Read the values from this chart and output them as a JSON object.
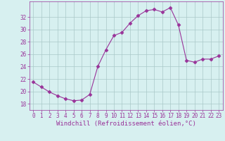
{
  "x": [
    0,
    1,
    2,
    3,
    4,
    5,
    6,
    7,
    8,
    9,
    10,
    11,
    12,
    13,
    14,
    15,
    16,
    17,
    18,
    19,
    20,
    21,
    22,
    23
  ],
  "y": [
    21.5,
    20.7,
    19.9,
    19.3,
    18.8,
    18.5,
    18.6,
    19.5,
    24.0,
    26.7,
    29.0,
    29.5,
    31.0,
    32.2,
    33.0,
    33.2,
    32.8,
    33.5,
    30.7,
    25.0,
    24.7,
    25.2,
    25.2,
    25.7
  ],
  "line_color": "#993399",
  "marker": "D",
  "marker_size": 2.5,
  "background_color": "#d7f0f0",
  "grid_color": "#aac8c8",
  "xlabel": "Windchill (Refroidissement éolien,°C)",
  "ylabel": "",
  "xlim": [
    -0.5,
    23.5
  ],
  "ylim": [
    17.0,
    34.5
  ],
  "yticks": [
    18,
    20,
    22,
    24,
    26,
    28,
    30,
    32
  ],
  "xticks": [
    0,
    1,
    2,
    3,
    4,
    5,
    6,
    7,
    8,
    9,
    10,
    11,
    12,
    13,
    14,
    15,
    16,
    17,
    18,
    19,
    20,
    21,
    22,
    23
  ],
  "tick_color": "#993399",
  "label_color": "#993399",
  "tick_fontsize": 5.5,
  "xlabel_fontsize": 6.5
}
